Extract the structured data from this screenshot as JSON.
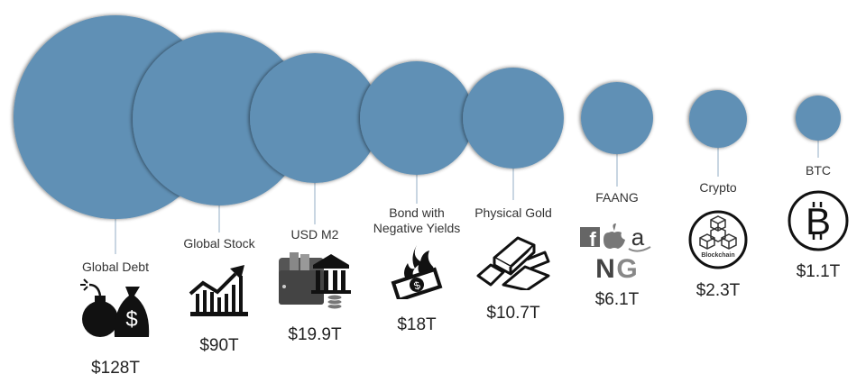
{
  "chart_data": {
    "type": "bubble",
    "title": "",
    "unit": "trillion USD",
    "color": "#6190b5",
    "items": [
      {
        "label": "Global Debt",
        "value": 128,
        "value_label": "$128T",
        "icon": "bomb-and-money-bag-icon"
      },
      {
        "label": "Global Stock",
        "value": 90,
        "value_label": "$90T",
        "icon": "stock-chart-up-icon"
      },
      {
        "label": "USD M2",
        "value": 19.9,
        "value_label": "$19.9T",
        "icon": "wallet-bank-coins-icon"
      },
      {
        "label": "Bond with Negative Yields",
        "label_lines": [
          "Bond with",
          "Negative Yields"
        ],
        "value": 18,
        "value_label": "$18T",
        "icon": "burning-money-icon"
      },
      {
        "label": "Physical Gold",
        "value": 10.7,
        "value_label": "$10.7T",
        "icon": "gold-bars-icon"
      },
      {
        "label": "FAANG",
        "value": 6.1,
        "value_label": "$6.1T",
        "icon": "faang-logos-icon",
        "icon_text": [
          "f",
          "a",
          "N",
          "G"
        ]
      },
      {
        "label": "Crypto",
        "value": 2.3,
        "value_label": "$2.3T",
        "icon": "blockchain-icon",
        "icon_text": [
          "Blockchain"
        ]
      },
      {
        "label": "BTC",
        "value": 1.1,
        "value_label": "$1.1T",
        "icon": "bitcoin-icon",
        "icon_text": [
          "B"
        ]
      }
    ]
  }
}
